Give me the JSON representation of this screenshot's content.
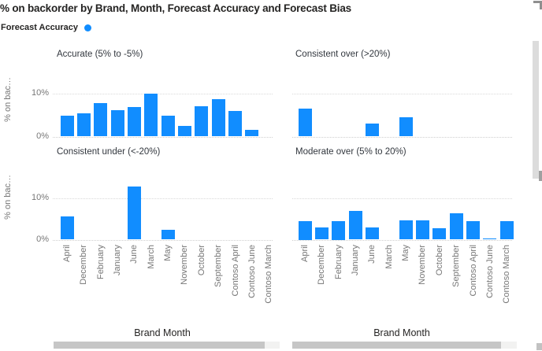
{
  "title": "% on backorder by Brand, Month, Forecast Accuracy and Forecast Bias",
  "legend": {
    "title": "Forecast Accuracy",
    "series_marker": "circle-icon",
    "series_color": "#118DFF"
  },
  "axes": {
    "x_title": "Brand Month",
    "y_title_truncated": "% on bac…",
    "y_tick_labels": [
      "10%",
      "0%"
    ]
  },
  "chart_data": {
    "type": "bar",
    "layout": "small-multiples-2x2",
    "title": "% on backorder by Brand, Month, Forecast Accuracy and Forecast Bias",
    "xlabel": "Brand Month",
    "ylabel": "% on backorder",
    "ylim": [
      0,
      13
    ],
    "y_ticks_percent": [
      0,
      10
    ],
    "grid": "horizontal dotted lines at 0% and 10%",
    "legend_position": "top-left",
    "bar_color": "#118DFF",
    "categories": [
      "April",
      "December",
      "February",
      "January",
      "June",
      "March",
      "May",
      "November",
      "October",
      "September",
      "Contoso April",
      "Contoso June",
      "Contoso March"
    ],
    "panels": [
      {
        "title": "Accurate (5% to -5%)",
        "values": [
          4.8,
          5.5,
          7.9,
          6.1,
          6.9,
          10,
          4.8,
          2.5,
          7,
          8.7,
          5.9,
          1.5,
          null
        ]
      },
      {
        "title": "Consistent over (>20%)",
        "values": [
          6.6,
          null,
          null,
          null,
          3.1,
          null,
          4.5,
          null,
          null,
          null,
          null,
          null,
          null
        ]
      },
      {
        "title": "Consistent under (<-20%)",
        "values": [
          5.6,
          null,
          null,
          null,
          12.9,
          null,
          2.3,
          null,
          null,
          null,
          null,
          null,
          null
        ]
      },
      {
        "title": "Moderate over (5% to 20%)",
        "values": [
          4.5,
          2.9,
          4.5,
          6.9,
          2.9,
          null,
          4.7,
          4.7,
          2.7,
          6.3,
          4.4,
          0.3,
          4.4
        ]
      }
    ]
  }
}
